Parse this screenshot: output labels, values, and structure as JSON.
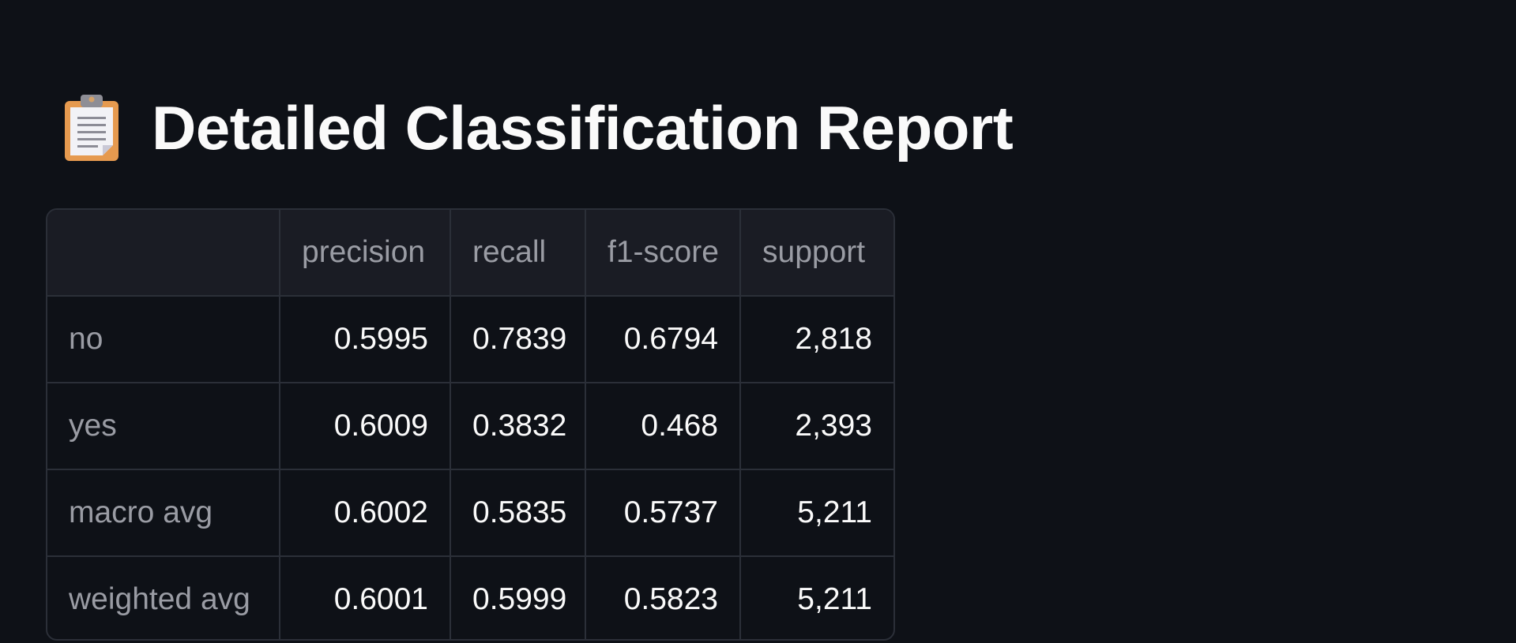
{
  "header": {
    "icon": "clipboard-icon",
    "title": "Detailed Classification Report"
  },
  "table": {
    "columns": [
      "",
      "precision",
      "recall",
      "f1-score",
      "support"
    ],
    "rows": [
      {
        "label": "no",
        "precision": "0.5995",
        "recall": "0.7839",
        "f1_score": "0.6794",
        "support": "2,818"
      },
      {
        "label": "yes",
        "precision": "0.6009",
        "recall": "0.3832",
        "f1_score": "0.468",
        "support": "2,393"
      },
      {
        "label": "macro avg",
        "precision": "0.6002",
        "recall": "0.5835",
        "f1_score": "0.5737",
        "support": "5,211"
      },
      {
        "label": "weighted avg",
        "precision": "0.6001",
        "recall": "0.5999",
        "f1_score": "0.5823",
        "support": "5,211"
      }
    ]
  },
  "colors": {
    "background": "#0e1117",
    "header_bg": "#1a1c24",
    "border": "#2b2f38",
    "text_primary": "#fafafa",
    "text_muted": "#9a9ca4",
    "clipboard_board": "#e69a4f",
    "clipboard_paper": "#f2f2f6",
    "clipboard_clip": "#8e8e96"
  }
}
